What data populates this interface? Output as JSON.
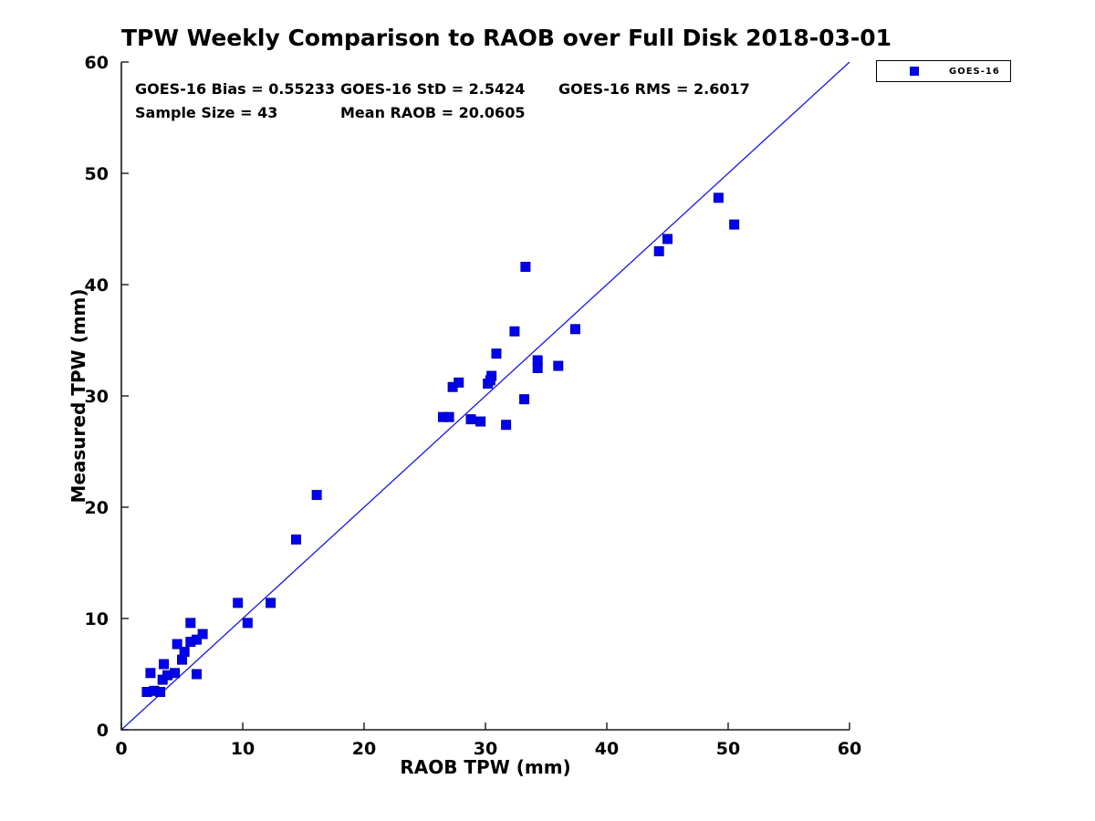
{
  "chart_data": {
    "type": "scatter",
    "title": "TPW Weekly Comparison to RAOB over Full Disk 2018-03-01",
    "xlabel": "RAOB TPW (mm)",
    "ylabel": "Measured TPW (mm)",
    "xlim": [
      0,
      60
    ],
    "ylim": [
      0,
      60
    ],
    "xticks": [
      0,
      10,
      20,
      30,
      40,
      50,
      60
    ],
    "yticks": [
      0,
      10,
      20,
      30,
      40,
      50,
      60
    ],
    "grid": false,
    "annotations": [
      "GOES-16 Bias = 0.55233",
      "GOES-16 StD = 2.5424",
      "GOES-16 RMS = 2.6017",
      "Sample Size = 43",
      "Mean RAOB = 20.0605"
    ],
    "stats": {
      "bias": 0.55233,
      "std": 2.5424,
      "rms": 2.6017,
      "sample_size": 43,
      "mean_raob": 20.0605
    },
    "legend": {
      "position": "outside-top-right",
      "entries": [
        {
          "label": "GOES-16",
          "marker": "square",
          "color": "#0000f0"
        }
      ]
    },
    "reference_line": {
      "from": [
        0,
        0
      ],
      "to": [
        60,
        60
      ],
      "color": "#1616e8",
      "style": "solid"
    },
    "series": [
      {
        "name": "GOES-16",
        "marker": "square",
        "marker_fill": "#0000f0",
        "marker_edge": "#0000b4",
        "points": [
          [
            2.1,
            3.4
          ],
          [
            2.7,
            3.5
          ],
          [
            3.2,
            3.4
          ],
          [
            2.4,
            5.1
          ],
          [
            3.4,
            4.5
          ],
          [
            3.8,
            4.9
          ],
          [
            4.4,
            5.1
          ],
          [
            3.5,
            5.9
          ],
          [
            5.0,
            6.3
          ],
          [
            5.2,
            7.0
          ],
          [
            4.6,
            7.7
          ],
          [
            5.7,
            7.9
          ],
          [
            6.2,
            8.1
          ],
          [
            6.7,
            8.6
          ],
          [
            5.7,
            9.6
          ],
          [
            6.2,
            5.0
          ],
          [
            9.6,
            11.4
          ],
          [
            10.4,
            9.6
          ],
          [
            12.3,
            11.4
          ],
          [
            14.4,
            17.1
          ],
          [
            16.1,
            21.1
          ],
          [
            26.5,
            28.1
          ],
          [
            27.0,
            28.1
          ],
          [
            28.8,
            27.9
          ],
          [
            29.6,
            27.7
          ],
          [
            31.7,
            27.4
          ],
          [
            27.3,
            30.8
          ],
          [
            27.8,
            31.2
          ],
          [
            30.2,
            31.1
          ],
          [
            30.5,
            31.8
          ],
          [
            30.4,
            31.4
          ],
          [
            30.9,
            33.8
          ],
          [
            33.2,
            29.7
          ],
          [
            32.4,
            35.8
          ],
          [
            33.3,
            41.6
          ],
          [
            34.3,
            33.2
          ],
          [
            34.3,
            32.5
          ],
          [
            36.0,
            32.7
          ],
          [
            37.4,
            36.0
          ],
          [
            44.3,
            43.0
          ],
          [
            45.0,
            44.1
          ],
          [
            49.2,
            47.8
          ],
          [
            50.5,
            45.4
          ]
        ]
      }
    ],
    "axis_color": "#1a1a1a",
    "background": "#ffffff"
  }
}
